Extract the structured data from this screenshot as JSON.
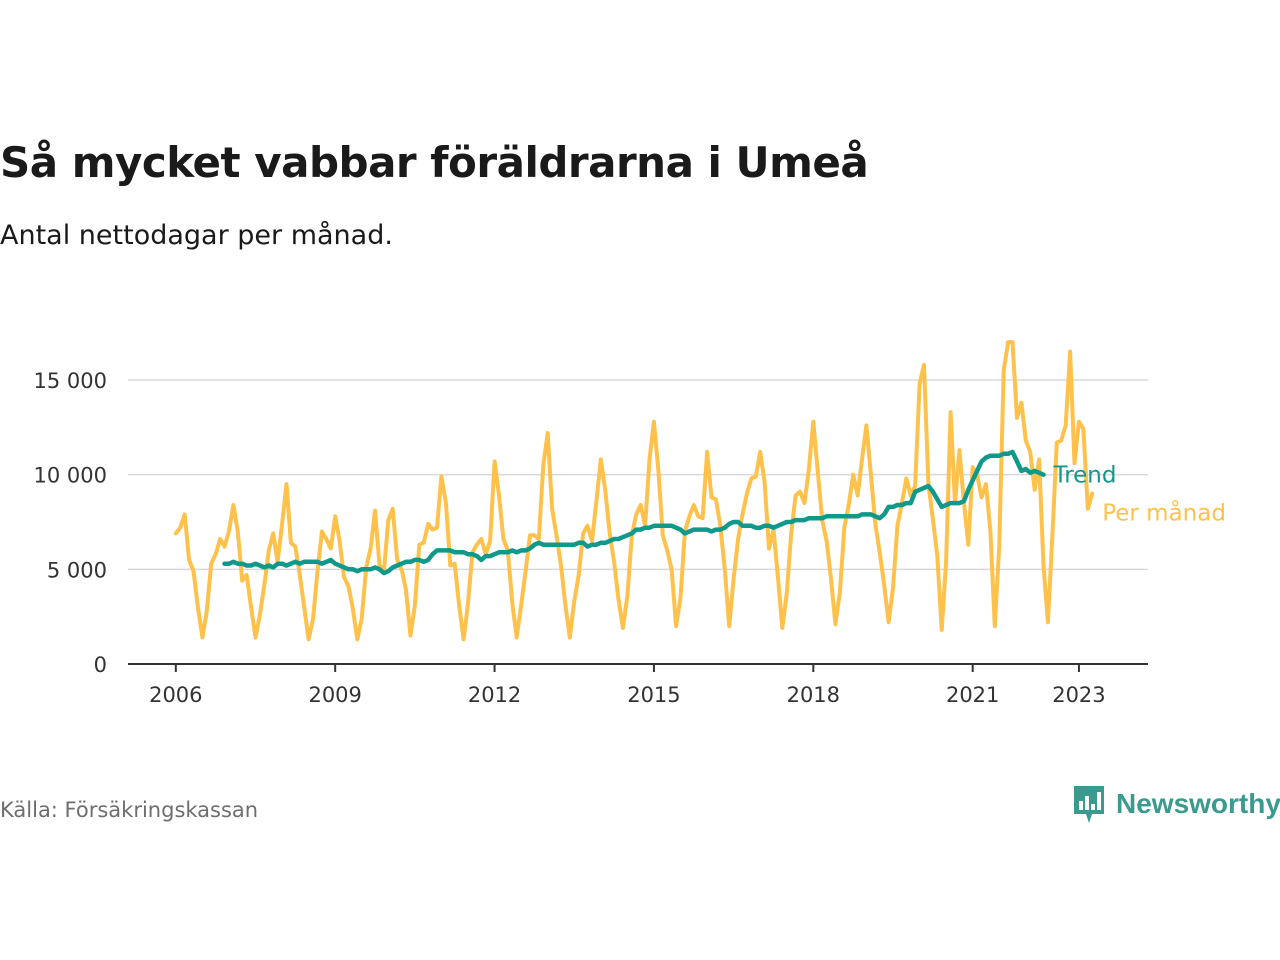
{
  "header": {
    "title": "Så mycket vabbar föräldrarna i Umeå",
    "subtitle": "Antal nettodagar per månad."
  },
  "footer": {
    "source": "Källa: Försäkringskassan",
    "brand": "Newsworthy"
  },
  "colors": {
    "monthly": "#fec24c",
    "trend": "#10998a",
    "grid": "#d9d9d9",
    "axis": "#333333",
    "brand": "#3a9a8e"
  },
  "chart_data": {
    "type": "line",
    "title": "Så mycket vabbar föräldrarna i Umeå",
    "subtitle": "Antal nettodagar per månad.",
    "xlabel": "",
    "ylabel": "",
    "xlim": [
      2005.1,
      2024.3
    ],
    "ylim": [
      0,
      17000
    ],
    "xticks": [
      {
        "value": 2006,
        "label": "2006"
      },
      {
        "value": 2009,
        "label": "2009"
      },
      {
        "value": 2012,
        "label": "2012"
      },
      {
        "value": 2015,
        "label": "2015"
      },
      {
        "value": 2018,
        "label": "2018"
      },
      {
        "value": 2021,
        "label": "2021"
      },
      {
        "value": 2023,
        "label": "2023"
      }
    ],
    "yticks": [
      {
        "value": 0,
        "label": "0"
      },
      {
        "value": 5000,
        "label": "5 000"
      },
      {
        "value": 10000,
        "label": "10 000"
      },
      {
        "value": 15000,
        "label": "15 000"
      }
    ],
    "grid": true,
    "legend_position": "right-end-labels",
    "series": [
      {
        "name": "Per månad",
        "color": "#fec24c",
        "x_start": 2006.0,
        "x_step": 0.0833333,
        "values": [
          6900,
          7200,
          7900,
          5500,
          4900,
          3000,
          1400,
          2800,
          5300,
          5800,
          6600,
          6200,
          7000,
          8400,
          7000,
          4400,
          4700,
          3000,
          1400,
          2600,
          4200,
          6000,
          6900,
          5400,
          7400,
          9500,
          6400,
          6200,
          4700,
          3000,
          1300,
          2400,
          4900,
          7000,
          6600,
          6100,
          7800,
          6500,
          4600,
          4100,
          2900,
          1300,
          2400,
          5100,
          6100,
          8100,
          5200,
          4900,
          7600,
          8200,
          5500,
          5000,
          3900,
          1500,
          3100,
          6300,
          6400,
          7400,
          7100,
          7200,
          9900,
          8500,
          5200,
          5300,
          3100,
          1300,
          3200,
          5900,
          6300,
          6600,
          5800,
          6500,
          10700,
          8900,
          6600,
          6000,
          3200,
          1400,
          3100,
          4900,
          6800,
          6800,
          6600,
          10500,
          12200,
          8200,
          6800,
          5200,
          3100,
          1400,
          3300,
          4700,
          6900,
          7300,
          6500,
          8600,
          10800,
          9200,
          6900,
          5400,
          3400,
          1900,
          3600,
          6800,
          7900,
          8400,
          7300,
          10800,
          12800,
          10200,
          6800,
          6000,
          5000,
          2000,
          3500,
          7000,
          7800,
          8400,
          7800,
          7700,
          11200,
          8800,
          8700,
          7300,
          5000,
          2000,
          4500,
          6600,
          7900,
          9000,
          9800,
          9900,
          11200,
          9600,
          6100,
          7100,
          4600,
          1900,
          3700,
          6900,
          8900,
          9100,
          8500,
          10300,
          12800,
          10200,
          7600,
          6500,
          4500,
          2100,
          3800,
          7200,
          8400,
          10000,
          8900,
          10800,
          12600,
          10000,
          7400,
          5900,
          4200,
          2200,
          4000,
          7300,
          8500,
          9800,
          8900,
          9400,
          14800,
          15800,
          9500,
          7700,
          5700,
          1800,
          5400,
          13300,
          8500,
          11300,
          8600,
          6300,
          10400,
          10000,
          8800,
          9500,
          7000,
          2000,
          6200,
          15500,
          17000,
          17000,
          13000,
          13800,
          11800,
          11200,
          9200,
          10800,
          5200,
          2200,
          6800,
          11700,
          11800,
          12600,
          16500,
          10600,
          12800,
          12400,
          8200,
          9000
        ]
      },
      {
        "name": "Trend",
        "color": "#10998a",
        "x_start": 2006.917,
        "x_step": 0.0833333,
        "values": [
          5300,
          5300,
          5400,
          5300,
          5300,
          5200,
          5200,
          5300,
          5200,
          5100,
          5200,
          5100,
          5300,
          5300,
          5200,
          5300,
          5400,
          5300,
          5400,
          5400,
          5400,
          5400,
          5300,
          5400,
          5500,
          5300,
          5200,
          5100,
          5000,
          5000,
          4900,
          5000,
          5000,
          5000,
          5100,
          5000,
          4800,
          4900,
          5100,
          5200,
          5300,
          5400,
          5400,
          5500,
          5500,
          5400,
          5500,
          5800,
          6000,
          6000,
          6000,
          6000,
          5900,
          5900,
          5900,
          5800,
          5800,
          5700,
          5500,
          5700,
          5700,
          5800,
          5900,
          5900,
          5900,
          6000,
          5900,
          6000,
          6000,
          6100,
          6300,
          6400,
          6300,
          6300,
          6300,
          6300,
          6300,
          6300,
          6300,
          6300,
          6400,
          6400,
          6200,
          6300,
          6300,
          6400,
          6400,
          6500,
          6600,
          6600,
          6700,
          6800,
          6900,
          7100,
          7100,
          7200,
          7200,
          7300,
          7300,
          7300,
          7300,
          7300,
          7200,
          7100,
          6900,
          7000,
          7100,
          7100,
          7100,
          7100,
          7000,
          7100,
          7100,
          7200,
          7400,
          7500,
          7500,
          7300,
          7300,
          7300,
          7200,
          7200,
          7300,
          7300,
          7200,
          7300,
          7400,
          7500,
          7500,
          7600,
          7600,
          7600,
          7700,
          7700,
          7700,
          7700,
          7800,
          7800,
          7800,
          7800,
          7800,
          7800,
          7800,
          7800,
          7900,
          7900,
          7900,
          7800,
          7700,
          7900,
          8300,
          8300,
          8400,
          8400,
          8500,
          8500,
          9100,
          9200,
          9300,
          9400,
          9100,
          8700,
          8300,
          8400,
          8500,
          8500,
          8500,
          8600,
          9200,
          9700,
          10200,
          10700,
          10900,
          11000,
          11000,
          11000,
          11100,
          11100,
          11200,
          10700,
          10200,
          10300,
          10100,
          10200,
          10100,
          10000
        ]
      }
    ]
  }
}
